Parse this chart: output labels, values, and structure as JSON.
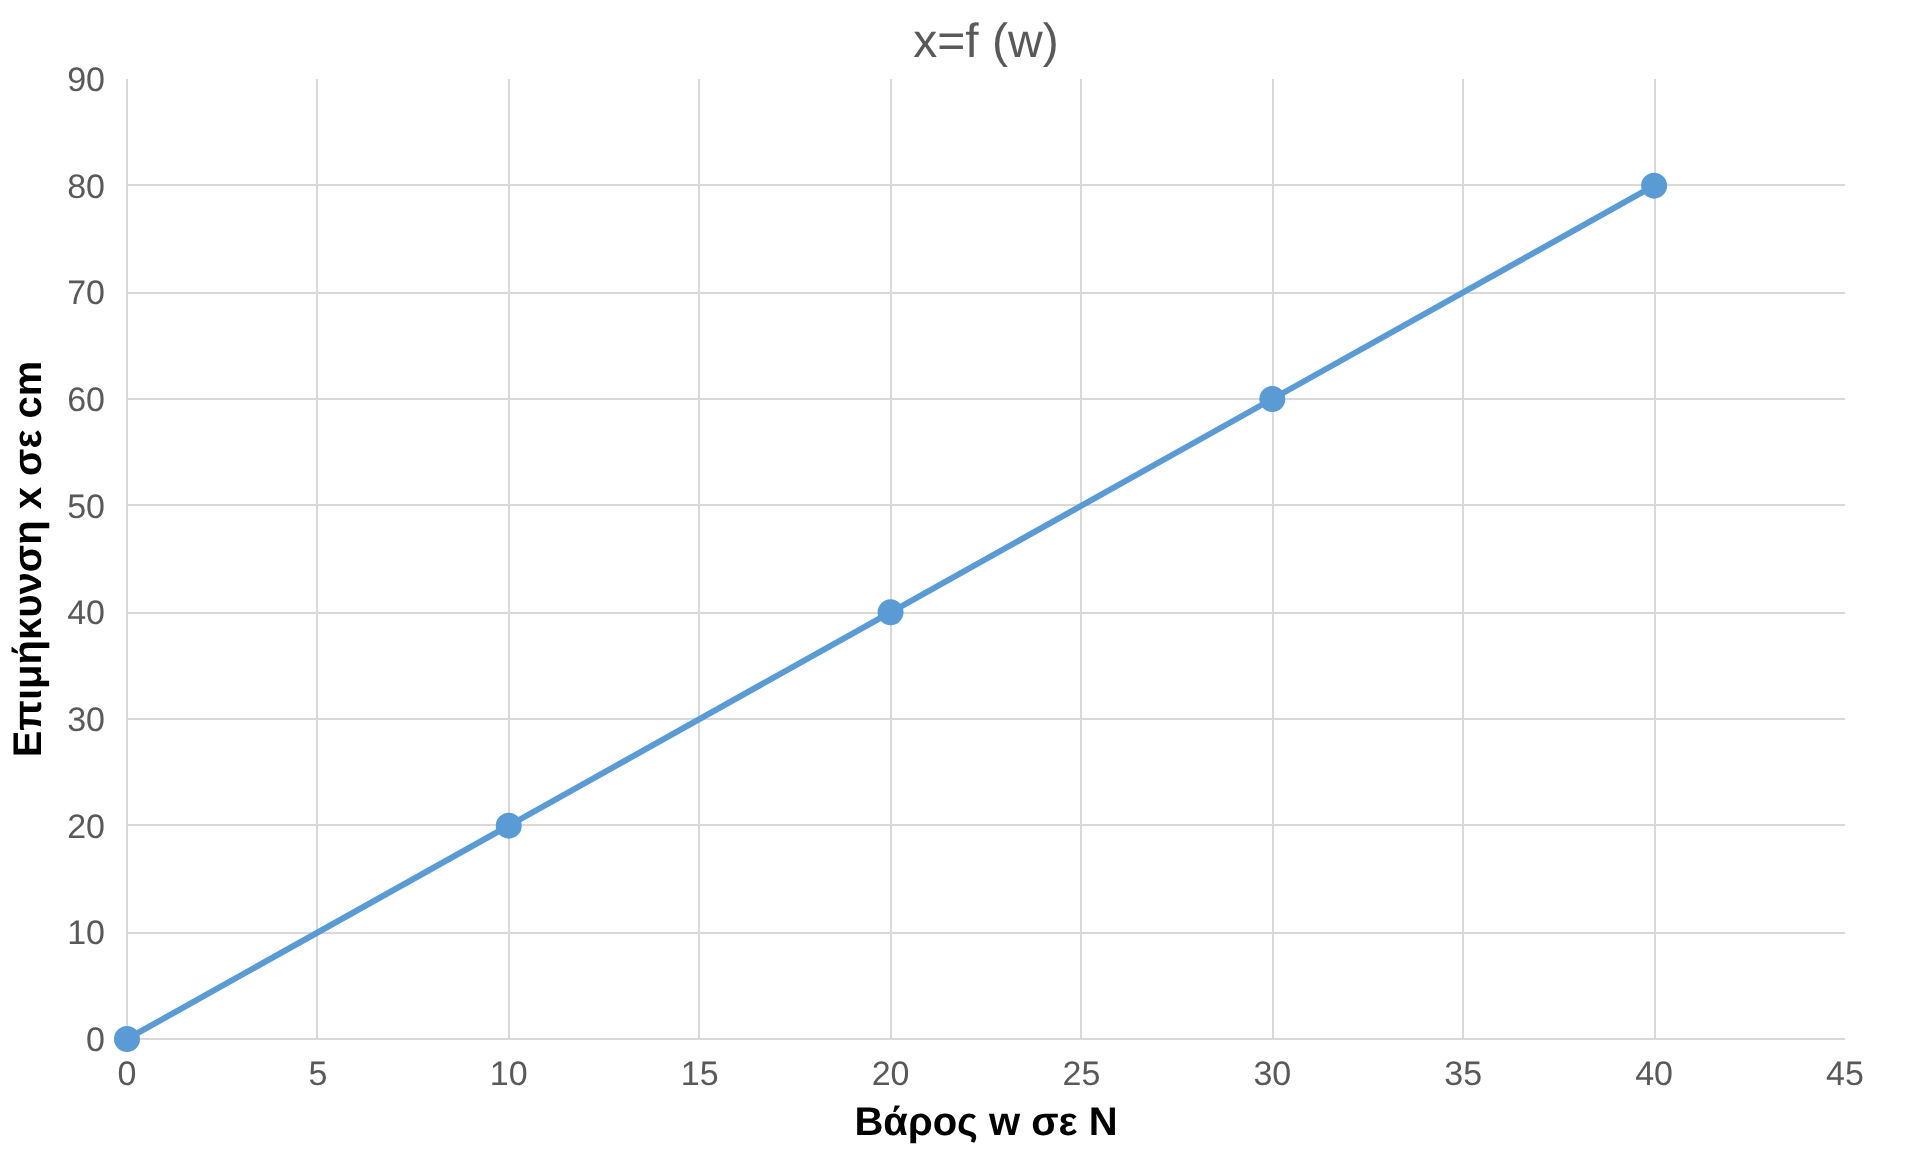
{
  "chart_data": {
    "type": "line",
    "title": "x=f (w)",
    "xlabel": "Βάρος w σε N",
    "ylabel": "Επιμήκυνση x σε cm",
    "x": [
      0,
      10,
      20,
      30,
      40
    ],
    "series": [
      {
        "color": "#5b9bd5",
        "values": [
          0,
          20,
          40,
          60,
          80
        ]
      }
    ],
    "xlim": [
      0,
      45
    ],
    "xticks": [
      0,
      5,
      10,
      15,
      20,
      25,
      30,
      35,
      40,
      45
    ],
    "ylim": [
      0,
      90
    ],
    "yticks": [
      0,
      10,
      20,
      30,
      40,
      50,
      60,
      70,
      80,
      90
    ],
    "grid": true,
    "marker": "circle",
    "line_style": "solid"
  }
}
